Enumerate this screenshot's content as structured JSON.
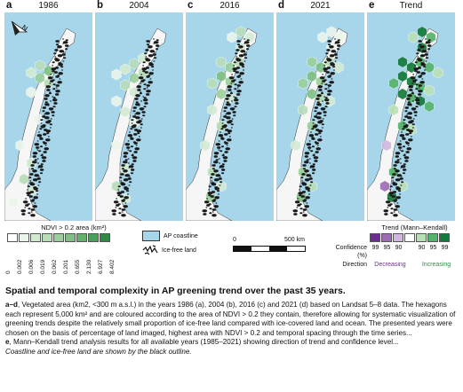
{
  "panels": [
    {
      "letter": "a",
      "year": "1986"
    },
    {
      "letter": "b",
      "year": "2004"
    },
    {
      "letter": "c",
      "year": "2016"
    },
    {
      "letter": "d",
      "year": "2021"
    },
    {
      "letter": "e",
      "year": "Trend"
    }
  ],
  "colors": {
    "ocean": "#a7d5ea",
    "land": "#f6f6f6",
    "rock": "#1a1a1a",
    "ndvi_scale": [
      "#ffffff",
      "#eaf4ea",
      "#d3ead2",
      "#b7dcb8",
      "#9bce9d",
      "#7fbf85",
      "#63af6c",
      "#4aa05a",
      "#2f8a45"
    ],
    "trend_scale": [
      "#6a2e8e",
      "#9c6cb3",
      "#d0b7dd",
      "#ffffff",
      "#b8e0b5",
      "#56b36b",
      "#137a3c"
    ]
  },
  "legend_ndvi": {
    "title": "NDVI > 0.2 area (km²)",
    "ticks": [
      "0",
      "0.002",
      "0.006",
      "0.019",
      "0.062",
      "0.201",
      "0.655",
      "2.130",
      "6.927",
      "8.402"
    ]
  },
  "legend_map": {
    "coastline_label": "AP coastline",
    "icefree_label": "Ice-free land"
  },
  "scalebar": {
    "left": "0",
    "right": "500 km"
  },
  "legend_trend": {
    "title": "Trend (Mann–Kendall)",
    "confidence_label": "Confidence (%)",
    "direction_label": "Direction",
    "confidence_values": [
      "99",
      "95",
      "90",
      "90",
      "95",
      "99"
    ],
    "decreasing": "Decreasing",
    "increasing": "Increasing"
  },
  "caption": {
    "title": "Spatial and temporal complexity in AP greening trend over the past 35 years.",
    "p1_bold": "a–d",
    "p1": ", Vegetated area (km2, <300 m a.s.l.) in the years 1986 (a), 2004 (b), 2016 (c) and 2021 (d) based on Landsat 5–8 data. The hexagons each represent 5,000 km² and are coloured according to the area of NDVI > 0.2 they contain, therefore allowing for systematic visualization of greening trends despite the relatively small proportion of ice-free land compared with ice-covered land and ocean. The presented years were chosen on the basis of percentage of land imaged, highest area with NDVI > 0.2 and temporal spacing through the time series...",
    "p2_bold": "e",
    "p2": ", Mann–Kendall trend analysis results for all available years (1985–2021) showing direction of trend and confidence level...",
    "p3": "Coastline and ice-free land are shown by the black outline."
  },
  "hex_levels": {
    "a": [
      [
        40,
        60,
        3
      ],
      [
        50,
        66,
        5
      ],
      [
        40,
        74,
        4
      ],
      [
        30,
        68,
        2
      ],
      [
        50,
        80,
        3
      ],
      [
        30,
        90,
        1
      ],
      [
        38,
        120,
        1
      ],
      [
        18,
        150,
        1
      ],
      [
        30,
        170,
        2
      ],
      [
        22,
        188,
        3
      ],
      [
        32,
        200,
        2
      ],
      [
        10,
        214,
        1
      ]
    ],
    "b": [
      [
        24,
        70,
        1
      ],
      [
        34,
        64,
        2
      ],
      [
        44,
        58,
        3
      ],
      [
        54,
        52,
        2
      ],
      [
        44,
        74,
        4
      ],
      [
        34,
        82,
        3
      ],
      [
        54,
        68,
        3
      ],
      [
        44,
        90,
        2
      ],
      [
        24,
        100,
        1
      ],
      [
        34,
        112,
        2
      ],
      [
        44,
        124,
        1
      ],
      [
        24,
        150,
        1
      ],
      [
        34,
        176,
        2
      ],
      [
        24,
        196,
        3
      ],
      [
        34,
        210,
        2
      ]
    ],
    "c": [
      [
        62,
        22,
        3
      ],
      [
        72,
        28,
        2
      ],
      [
        52,
        28,
        1
      ],
      [
        62,
        40,
        2
      ],
      [
        40,
        56,
        3
      ],
      [
        50,
        62,
        4
      ],
      [
        60,
        56,
        3
      ],
      [
        40,
        72,
        5
      ],
      [
        50,
        78,
        4
      ],
      [
        30,
        80,
        3
      ],
      [
        40,
        92,
        4
      ],
      [
        50,
        96,
        2
      ],
      [
        30,
        110,
        2
      ],
      [
        40,
        128,
        3
      ],
      [
        22,
        150,
        2
      ],
      [
        30,
        180,
        3
      ],
      [
        40,
        196,
        2
      ],
      [
        28,
        208,
        4
      ]
    ],
    "d": [
      [
        62,
        22,
        1
      ],
      [
        72,
        28,
        1
      ],
      [
        52,
        28,
        1
      ],
      [
        62,
        40,
        1
      ],
      [
        40,
        56,
        4
      ],
      [
        50,
        62,
        5
      ],
      [
        60,
        56,
        3
      ],
      [
        70,
        62,
        2
      ],
      [
        40,
        72,
        5
      ],
      [
        50,
        78,
        4
      ],
      [
        30,
        80,
        4
      ],
      [
        40,
        92,
        5
      ],
      [
        50,
        96,
        3
      ],
      [
        60,
        100,
        2
      ],
      [
        30,
        110,
        3
      ],
      [
        40,
        128,
        4
      ],
      [
        22,
        150,
        2
      ],
      [
        30,
        180,
        4
      ],
      [
        40,
        196,
        3
      ],
      [
        28,
        208,
        5
      ]
    ],
    "e": [
      [
        62,
        22,
        6
      ],
      [
        72,
        28,
        5
      ],
      [
        52,
        28,
        4
      ],
      [
        62,
        40,
        6
      ],
      [
        40,
        56,
        6
      ],
      [
        50,
        62,
        6
      ],
      [
        60,
        56,
        5
      ],
      [
        70,
        62,
        5
      ],
      [
        80,
        68,
        4
      ],
      [
        40,
        72,
        6
      ],
      [
        50,
        78,
        6
      ],
      [
        60,
        84,
        5
      ],
      [
        70,
        88,
        4
      ],
      [
        30,
        80,
        5
      ],
      [
        40,
        92,
        6
      ],
      [
        50,
        96,
        5
      ],
      [
        60,
        100,
        6
      ],
      [
        70,
        106,
        5
      ],
      [
        30,
        110,
        4
      ],
      [
        40,
        128,
        5
      ],
      [
        50,
        132,
        4
      ],
      [
        22,
        150,
        2
      ],
      [
        30,
        180,
        5
      ],
      [
        40,
        196,
        4
      ],
      [
        28,
        208,
        6
      ],
      [
        20,
        196,
        1
      ]
    ]
  }
}
